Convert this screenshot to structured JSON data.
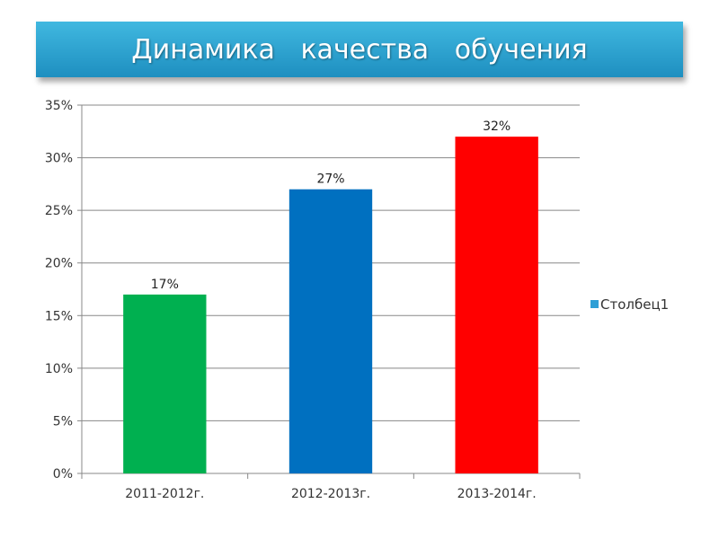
{
  "title": "Динамика   качества   обучения",
  "colors": {
    "banner": "#2aa3d3",
    "bars": [
      "#00b050",
      "#0070c0",
      "#ff0000"
    ],
    "legend": "#2e9fd6",
    "grid": "#888888"
  },
  "chart_data": {
    "type": "bar",
    "categories": [
      "2011-2012г.",
      "2012-2013г.",
      "2013-2014г."
    ],
    "series": [
      {
        "name": "Столбец1",
        "values": [
          17,
          27,
          32
        ]
      }
    ],
    "data_labels": [
      "17%",
      "27%",
      "32%"
    ],
    "y_ticks": [
      "0%",
      "5%",
      "10%",
      "15%",
      "20%",
      "25%",
      "30%",
      "35%"
    ],
    "ylim": [
      0,
      35
    ],
    "grid": true,
    "legend": "right"
  }
}
